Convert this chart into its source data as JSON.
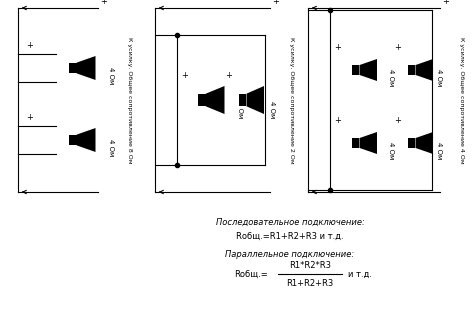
{
  "bg_color": "#ffffff",
  "fig_width": 4.74,
  "fig_height": 3.16,
  "dpi": 100,
  "formula_serial_title": "Последовательное подключение:",
  "formula_serial": "Rобщ.=R1+R2+R3 и т.д.",
  "formula_parallel_title": "Параллельное подключение:",
  "formula_parallel_num": "R1*R2*R3",
  "formula_parallel_den": "R1+R2+R3",
  "formula_parallel_prefix": "Rобщ.=",
  "formula_parallel_suffix": "и т.д."
}
